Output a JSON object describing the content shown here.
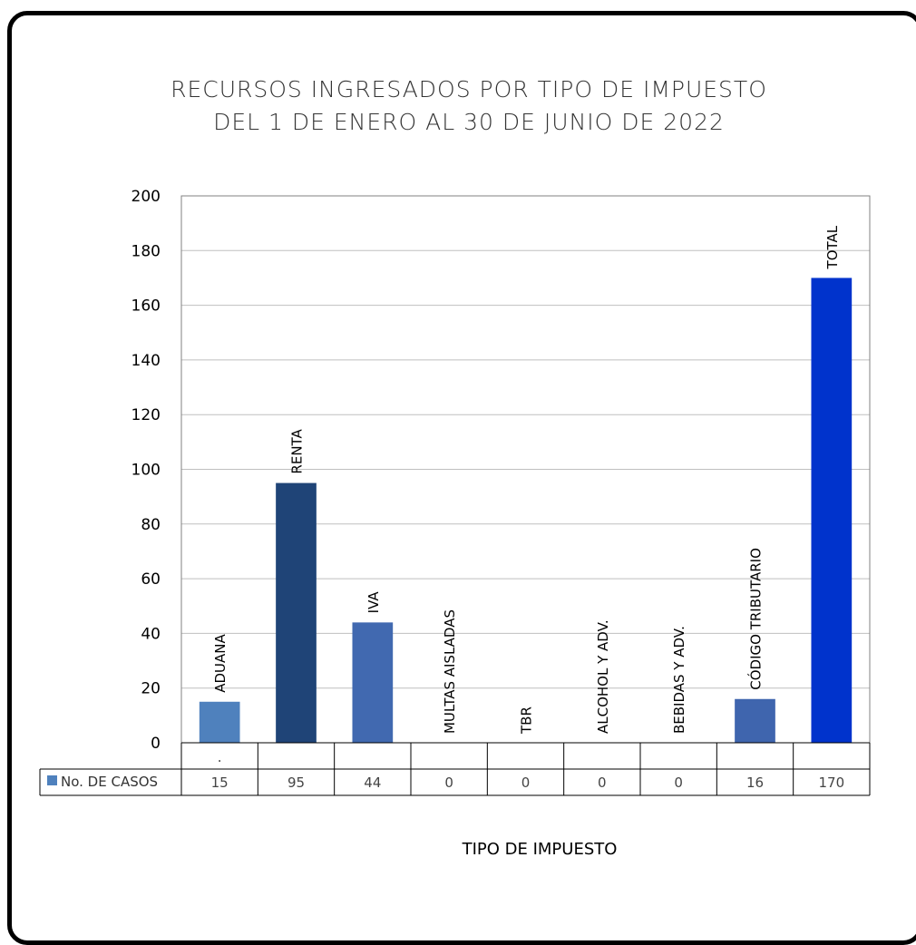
{
  "chart_data": {
    "type": "bar",
    "title_lines": [
      "RECURSOS INGRESADOS POR TIPO DE IMPUESTO",
      "DEL 1 DE ENERO AL 30 DE JUNIO DE 2022"
    ],
    "xlabel": "TIPO DE IMPUESTO",
    "ylabel": "",
    "ylim": [
      0,
      200
    ],
    "yticks": [
      0,
      20,
      40,
      60,
      80,
      100,
      120,
      140,
      160,
      180,
      200
    ],
    "grid": true,
    "categories": [
      "ADUANA",
      "RENTA",
      "IVA",
      "MULTAS AISLADAS",
      "TBR",
      "ALCOHOL Y ADV.",
      "BEBIDAS Y ADV.",
      "CÓDIGO TRIBUTARIO",
      "TOTAL"
    ],
    "series": [
      {
        "name": "No. DE CASOS",
        "values": [
          15,
          95,
          44,
          0,
          0,
          0,
          0,
          16,
          170
        ],
        "colors": [
          "#4F81BD",
          "#1F4477",
          "#4169B0",
          "#4F81BD",
          "#4F81BD",
          "#4F81BD",
          "#4F81BD",
          "#3F65AE",
          "#0033CC"
        ]
      }
    ],
    "legend_marker_color": "#4F81BD",
    "table_header_mark": "."
  }
}
